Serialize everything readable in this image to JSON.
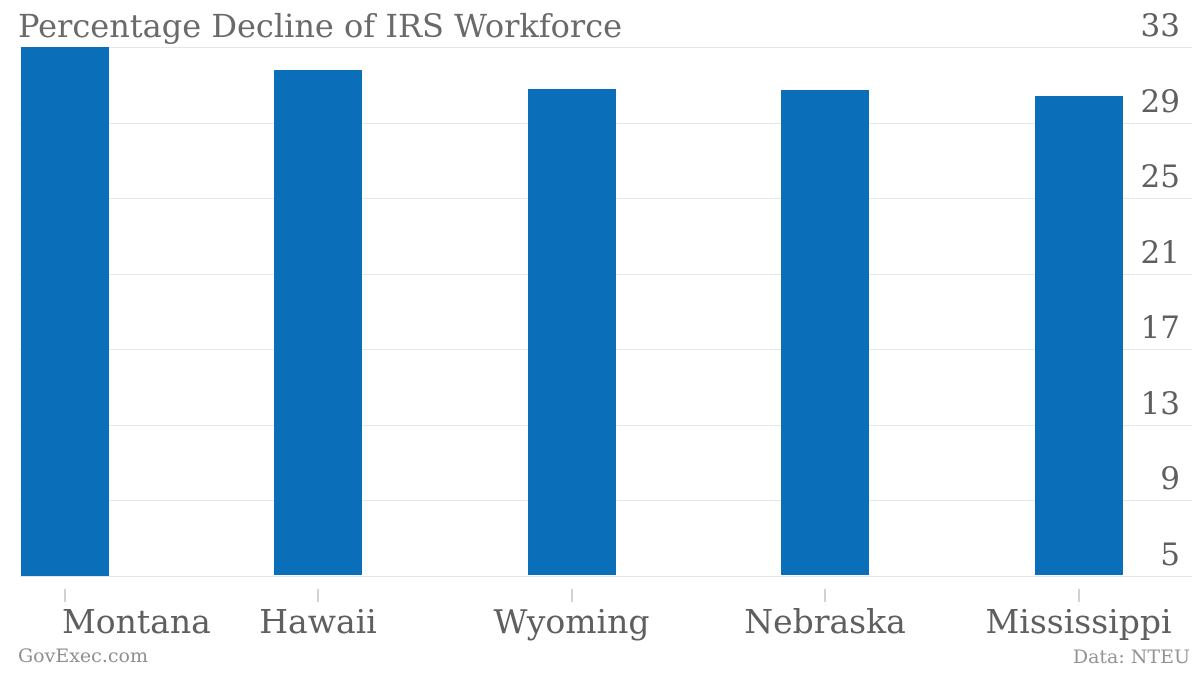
{
  "title": "Percentage Decline of IRS Workforce",
  "footer": {
    "credit_left": "GovExec.com",
    "credit_right": "Data: NTEU"
  },
  "colors": {
    "bar": "#0a6eb9",
    "gridline": "#e6e6e6",
    "tick": "#d2d2d2",
    "title_text": "#6a6a6a",
    "axis_text": "#5f5f5f",
    "credit_text": "#8f8f8f",
    "background": "#ffffff"
  },
  "chart_data": {
    "type": "bar",
    "title": "Percentage Decline of IRS Workforce",
    "categories": [
      "Montana",
      "Hawaii",
      "Wyoming",
      "Nebraska",
      "Mississippi"
    ],
    "values": [
      33,
      31.8,
      30.8,
      30.7,
      30.4
    ],
    "xlabel": "",
    "ylabel": "",
    "y_axis_ticks": [
      33,
      29,
      25,
      21,
      17,
      13,
      9,
      5
    ],
    "ylim": [
      5,
      33
    ],
    "grid": "horizontal",
    "axis_side": "right",
    "legend": "none",
    "source": "Data: NTEU",
    "credit": "GovExec.com"
  }
}
